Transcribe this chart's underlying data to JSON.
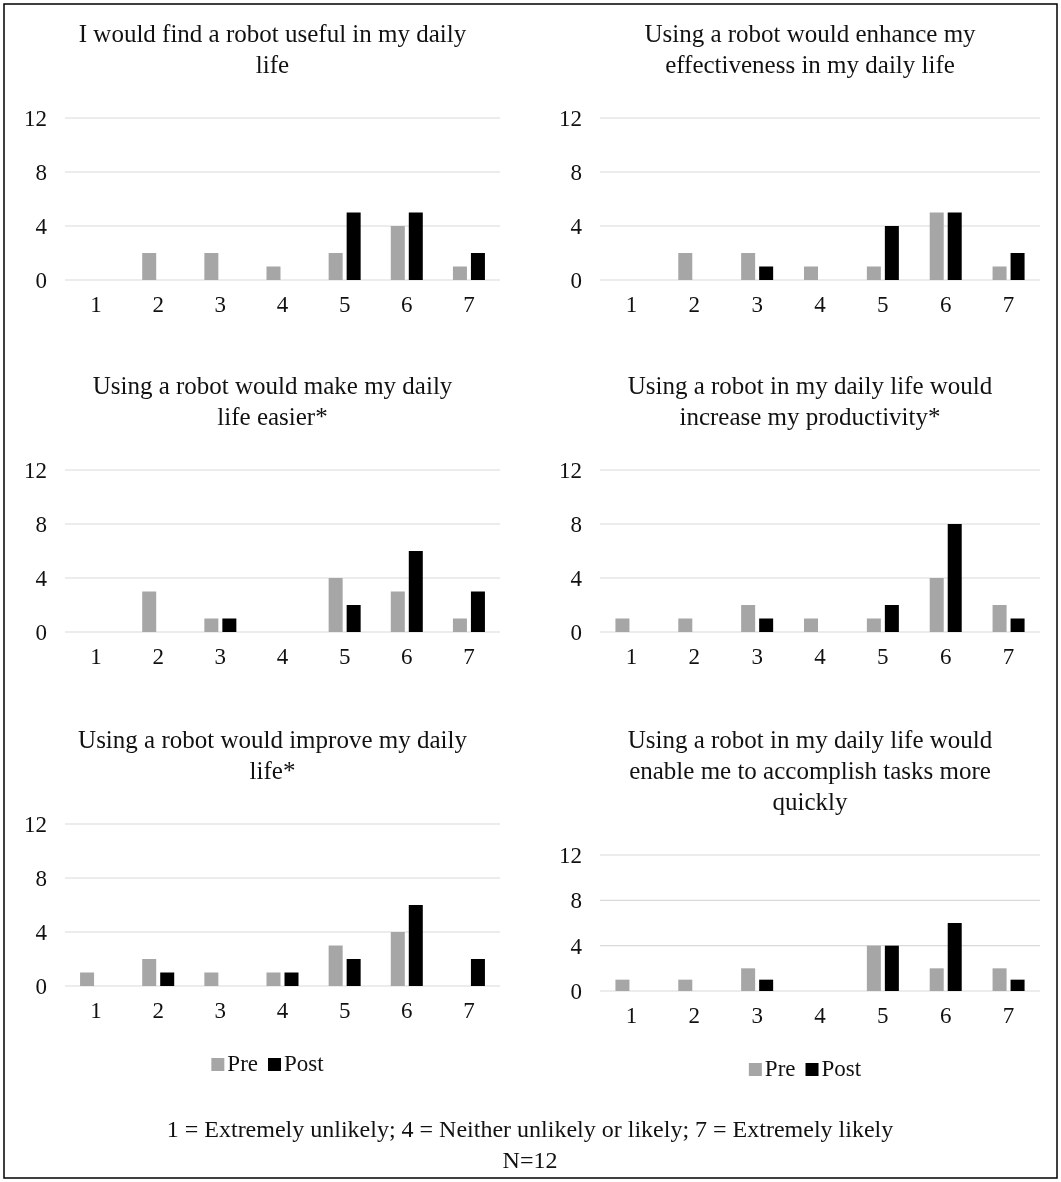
{
  "chart_data": [
    {
      "type": "bar",
      "title": "I would find a robot useful in my daily life",
      "categories": [
        "1",
        "2",
        "3",
        "4",
        "5",
        "6",
        "7"
      ],
      "series": [
        {
          "color": "#a6a6a6",
          "values": [
            0,
            2,
            2,
            1,
            2,
            4,
            1
          ]
        },
        {
          "color": "#000000",
          "values": [
            0,
            0,
            0,
            0,
            5,
            5,
            2
          ]
        }
      ],
      "ylim": [
        0,
        12
      ],
      "yticks": [
        0,
        4,
        8,
        12
      ],
      "grid": "y",
      "legend": false
    },
    {
      "type": "bar",
      "title": "Using a robot would enhance my effectiveness in my daily life",
      "categories": [
        "1",
        "2",
        "3",
        "4",
        "5",
        "6",
        "7"
      ],
      "series": [
        {
          "color": "#a6a6a6",
          "values": [
            0,
            2,
            2,
            1,
            1,
            5,
            1
          ]
        },
        {
          "color": "#000000",
          "values": [
            0,
            0,
            1,
            0,
            4,
            5,
            2
          ]
        }
      ],
      "ylim": [
        0,
        12
      ],
      "yticks": [
        0,
        4,
        8,
        12
      ],
      "grid": "y",
      "legend": false
    },
    {
      "type": "bar",
      "title": "Using a robot would make my daily life easier*",
      "categories": [
        "1",
        "2",
        "3",
        "4",
        "5",
        "6",
        "7"
      ],
      "series": [
        {
          "color": "#a6a6a6",
          "values": [
            0,
            3,
            1,
            0,
            4,
            3,
            1
          ]
        },
        {
          "color": "#000000",
          "values": [
            0,
            0,
            1,
            0,
            2,
            6,
            3
          ]
        }
      ],
      "ylim": [
        0,
        12
      ],
      "yticks": [
        0,
        4,
        8,
        12
      ],
      "grid": "y",
      "legend": false
    },
    {
      "type": "bar",
      "title": "Using a robot in my daily life would increase my productivity*",
      "categories": [
        "1",
        "2",
        "3",
        "4",
        "5",
        "6",
        "7"
      ],
      "series": [
        {
          "color": "#a6a6a6",
          "values": [
            1,
            1,
            2,
            1,
            1,
            4,
            2
          ]
        },
        {
          "color": "#000000",
          "values": [
            0,
            0,
            1,
            0,
            2,
            8,
            1
          ]
        }
      ],
      "ylim": [
        0,
        12
      ],
      "yticks": [
        0,
        4,
        8,
        12
      ],
      "grid": "y",
      "legend": false
    },
    {
      "type": "bar",
      "title": "Using a robot would improve my daily life*",
      "categories": [
        "1",
        "2",
        "3",
        "4",
        "5",
        "6",
        "7"
      ],
      "series": [
        {
          "name": "Pre",
          "color": "#a6a6a6",
          "values": [
            1,
            2,
            1,
            1,
            3,
            4,
            0
          ]
        },
        {
          "name": "Post",
          "color": "#000000",
          "values": [
            0,
            1,
            0,
            1,
            2,
            6,
            2
          ]
        }
      ],
      "ylim": [
        0,
        12
      ],
      "yticks": [
        0,
        4,
        8,
        12
      ],
      "grid": "y",
      "legend": "bottom"
    },
    {
      "type": "bar",
      "title": "Using a robot in my daily life would enable me to accomplish tasks more quickly",
      "categories": [
        "1",
        "2",
        "3",
        "4",
        "5",
        "6",
        "7"
      ],
      "series": [
        {
          "name": "Pre",
          "color": "#a6a6a6",
          "values": [
            1,
            1,
            2,
            0,
            4,
            2,
            2
          ]
        },
        {
          "name": "Post",
          "color": "#000000",
          "values": [
            0,
            0,
            1,
            0,
            4,
            6,
            1
          ]
        }
      ],
      "ylim": [
        0,
        12
      ],
      "yticks": [
        0,
        4,
        8,
        12
      ],
      "grid": "y",
      "legend": "bottom",
      "annotations": [
        "1 = Extremely unlikely; 4 = Neither unlikely or likely; 7 = Extremely likely",
        "N=12"
      ]
    }
  ]
}
